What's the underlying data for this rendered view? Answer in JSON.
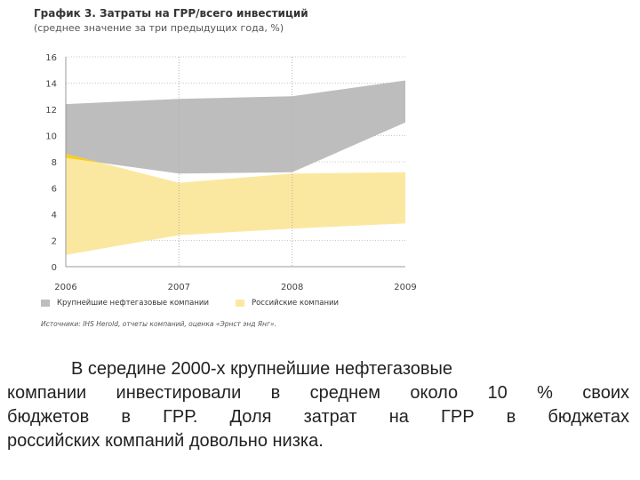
{
  "header": {
    "title": "График 3. Затраты на ГРР/всего инвестиций",
    "subtitle": "(среднее значение за три предыдущих года, %)"
  },
  "legend": {
    "items": [
      {
        "label": "Крупнейшие нефтегазовые компании",
        "color": "#bdbdbd"
      },
      {
        "label": "Российские компании",
        "color": "#fbe8a0"
      }
    ]
  },
  "source": "Источники: IHS Herold, отчеты компаний, оценка «Эрнст энд Янг».",
  "chart_data": {
    "type": "area",
    "x": [
      "2006",
      "2007",
      "2008",
      "2009"
    ],
    "ylim": [
      0,
      16
    ],
    "yticks": [
      "0",
      "2",
      "4",
      "6",
      "8",
      "10",
      "12",
      "14",
      "16"
    ],
    "grid": true,
    "series": [
      {
        "name": "Крупнейшие нефтегазовые компании",
        "low": [
          8.3,
          7.1,
          7.2,
          11.0
        ],
        "high": [
          12.4,
          12.8,
          13.0,
          14.2
        ],
        "color": "#bdbdbd"
      },
      {
        "name": "Российские компании",
        "low": [
          0.9,
          2.4,
          2.9,
          3.3
        ],
        "high": [
          8.6,
          6.4,
          7.1,
          7.2
        ],
        "color": "#fbe8a0"
      }
    ],
    "overlap_color": "#f7cf20"
  },
  "body": {
    "line1": "В середине 2000-х крупнейшие нефтегазовые",
    "line2": "компании инвестировали в среднем около 10 % своих",
    "line3": "бюджетов в ГРР. Доля затрат на ГРР в бюджетах",
    "line4": "российских компаний довольно низка."
  }
}
